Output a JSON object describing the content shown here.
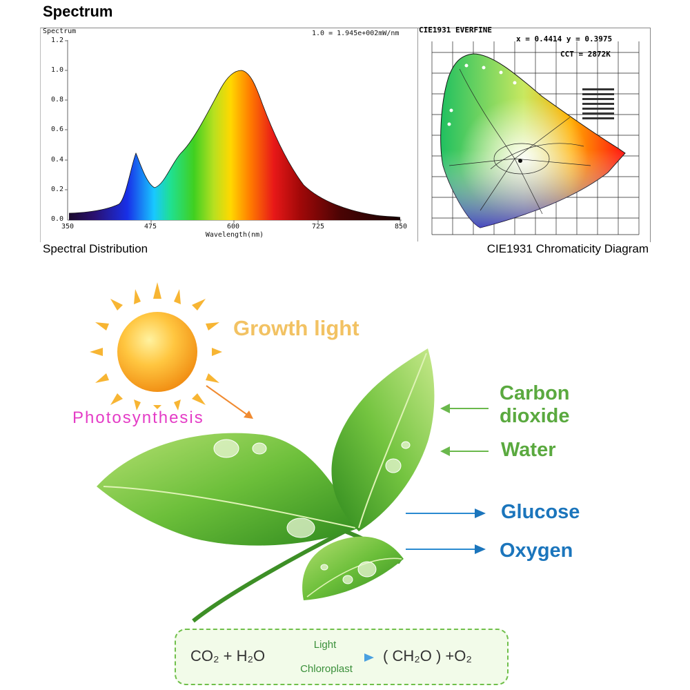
{
  "top": {
    "heading": "Spectrum",
    "spectral_panel": {
      "y_axis_label": "Spectrum",
      "scale_note": "1.0 = 1.945e+002mW/nm",
      "y_ticks": [
        "1.2",
        "1.0",
        "0.8",
        "0.6",
        "0.4",
        "0.2",
        "0.0"
      ],
      "x_ticks": [
        "350",
        "475",
        "600",
        "725",
        "850"
      ],
      "x_axis_label": "Wavelength(nm)",
      "caption": "Spectral Distribution"
    },
    "cie_panel": {
      "title": "CIE1931  EVERFINE",
      "xy_readout": "x = 0.4414 y = 0.3975",
      "cct_readout": "CCT = 2872K",
      "caption": "CIE1931 Chromaticity Diagram"
    }
  },
  "bottom": {
    "title": "Growth light",
    "photosynthesis_label": "Photosynthesis",
    "inputs": {
      "carbon_line1": "Carbon",
      "carbon_line2": "dioxide",
      "water": "Water"
    },
    "outputs": {
      "glucose": "Glucose",
      "oxygen": "Oxygen"
    },
    "equation": {
      "reactants": "CO₂ + H₂O",
      "condition_top": "Light",
      "condition_bottom": "Chloroplast",
      "products": "( CH₂O ) +O₂"
    },
    "colors": {
      "title": "#f2c263",
      "photosynthesis": "#e43cc6",
      "inputs": "#5aa93f",
      "outputs": "#1b75bc"
    },
    "icons": [
      "sun-icon",
      "leaf-icon"
    ]
  }
}
